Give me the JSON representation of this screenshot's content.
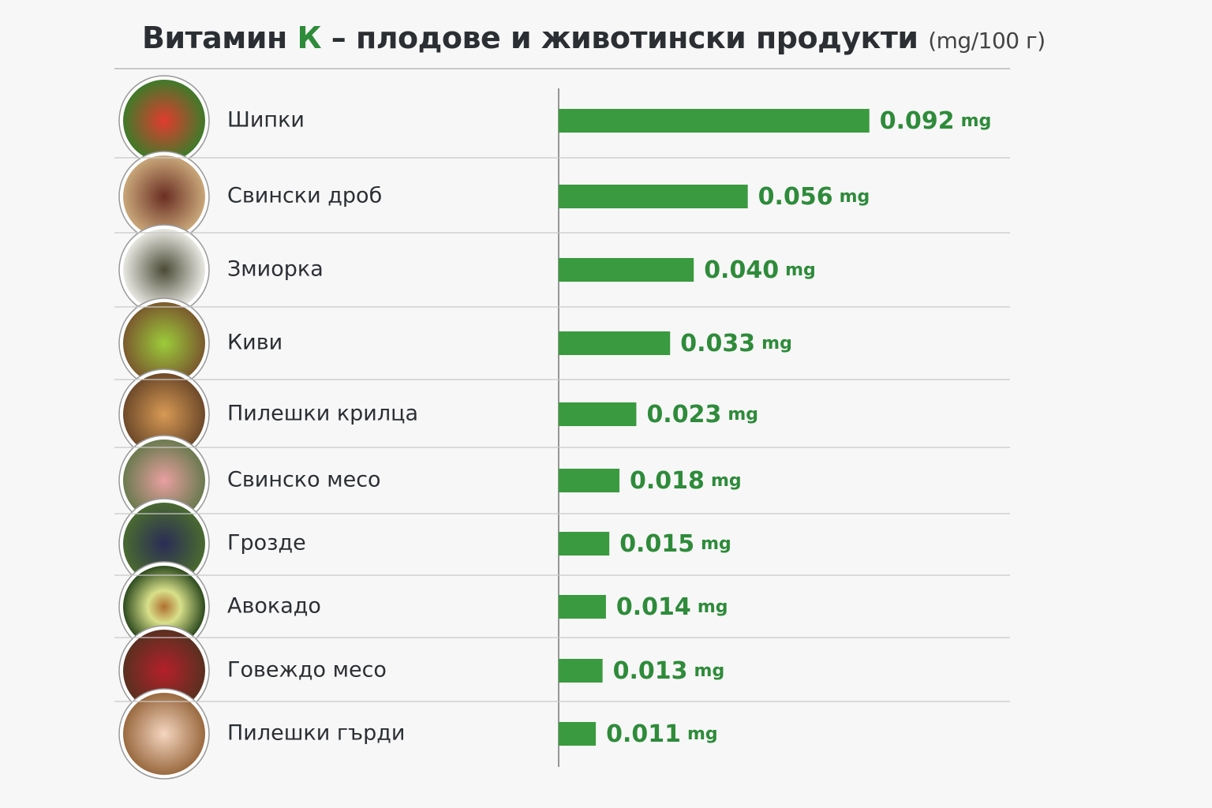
{
  "chart_data": {
    "type": "bar",
    "orientation": "horizontal",
    "title": {
      "lead": "Витамин",
      "highlight": "К",
      "rest": "– плодове и животински продукти",
      "unit": "(mg/100 г)"
    },
    "categories": [
      "Шипки",
      "Свински дроб",
      "Змиорка",
      "Киви",
      "Пилешки крилца",
      "Свинско месо",
      "Грозде",
      "Авокадо",
      "Говеждо месо",
      "Пилешки гърди"
    ],
    "values": [
      0.092,
      0.056,
      0.04,
      0.033,
      0.023,
      0.018,
      0.015,
      0.014,
      0.013,
      0.011
    ],
    "value_labels": [
      "0.092",
      "0.056",
      "0.040",
      "0.033",
      "0.023",
      "0.018",
      "0.015",
      "0.014",
      "0.013",
      "0.011"
    ],
    "value_unit": "mg",
    "color": "#3a9a3f",
    "highlight_color": "#2e8b3a",
    "xlim": [
      0,
      0.1
    ]
  }
}
